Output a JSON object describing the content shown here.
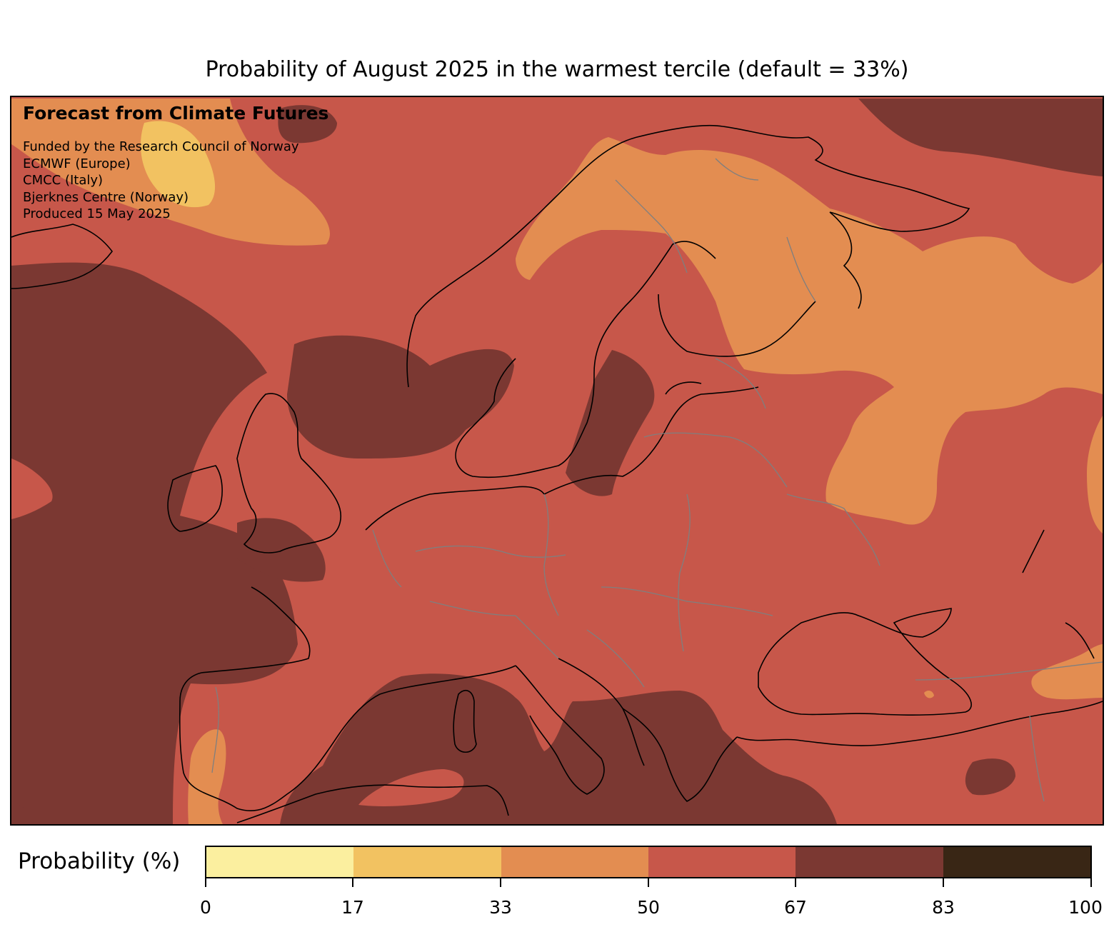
{
  "title": "Probability of August 2025 in the warmest tercile (default = 33%)",
  "info": {
    "heading": "Forecast from Climate Futures",
    "credits": [
      "Funded by the Research Council of Norway",
      "ECMWF (Europe)",
      "CMCC (Italy)",
      "Bjerknes Centre (Norway)",
      "Produced 15 May 2025"
    ]
  },
  "map": {
    "region": "Europe",
    "forecast_month": "August 2025",
    "background_category_color": "#c7574a"
  },
  "colorbar": {
    "label": "Probability (%)",
    "ticks": [
      "0",
      "17",
      "33",
      "50",
      "67",
      "83",
      "100"
    ],
    "colors": [
      "#fbef9f",
      "#f2c261",
      "#e38d51",
      "#c7574a",
      "#7b3832",
      "#392615"
    ]
  }
}
